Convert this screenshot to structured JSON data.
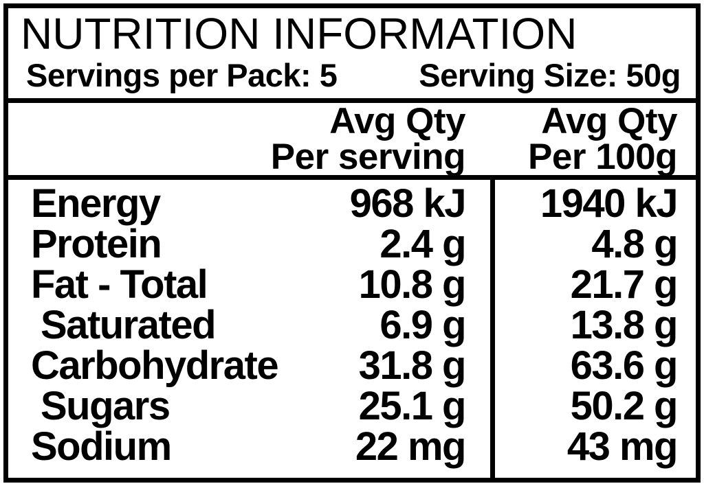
{
  "header": {
    "title": "NUTRITION INFORMATION",
    "servings_per_pack": "Servings per Pack: 5",
    "serving_size": "Serving Size: 50g"
  },
  "columns": {
    "per_serving": {
      "line1": "Avg Qty",
      "line2": "Per serving"
    },
    "per_100g": {
      "line1": "Avg Qty",
      "line2": "Per 100g"
    }
  },
  "rows": [
    {
      "name": "Energy",
      "per_serving": "968 kJ",
      "per_100g": "1940 kJ",
      "indent": false
    },
    {
      "name": "Protein",
      "per_serving": "2.4 g",
      "per_100g": "4.8 g",
      "indent": false
    },
    {
      "name": "Fat - Total",
      "per_serving": "10.8 g",
      "per_100g": "21.7 g",
      "indent": false
    },
    {
      "name": "Saturated",
      "per_serving": "6.9 g",
      "per_100g": "13.8 g",
      "indent": true
    },
    {
      "name": "Carbohydrate",
      "per_serving": "31.8 g",
      "per_100g": "63.6 g",
      "indent": false
    },
    {
      "name": "Sugars",
      "per_serving": "25.1 g",
      "per_100g": "50.2 g",
      "indent": true
    },
    {
      "name": "Sodium",
      "per_serving": "22 mg",
      "per_100g": "43 mg",
      "indent": false
    }
  ],
  "colors": {
    "ink": "#000000",
    "background": "#ffffff"
  }
}
